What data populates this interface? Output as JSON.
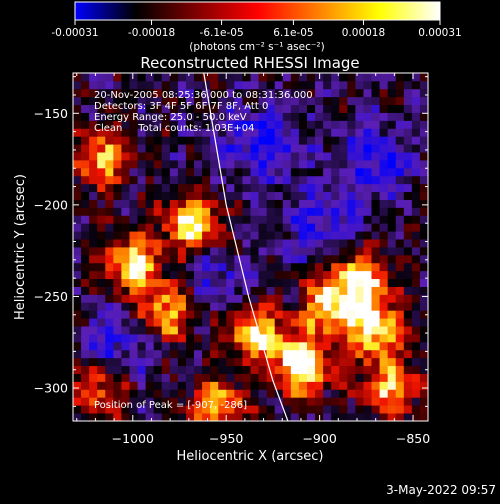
{
  "chart_data": {
    "type": "heatmap",
    "title": "Reconstructed RHESSI Image",
    "xlabel": "Heliocentric X (arcsec)",
    "ylabel": "Heliocentric Y (arcsec)",
    "xlim": [
      -1032,
      -842
    ],
    "ylim": [
      -318,
      -128
    ],
    "xticks": [
      -1000,
      -950,
      -900,
      -850
    ],
    "yticks": [
      -150,
      -200,
      -250,
      -300
    ],
    "colorbar": {
      "min": -0.00031,
      "max": 0.00031,
      "ticks": [
        {
          "value": -0.00031,
          "label": "-0.00031"
        },
        {
          "value": -0.00018,
          "label": "-0.00018"
        },
        {
          "value": -6.1e-05,
          "label": "-6.1e-05"
        },
        {
          "value": 6.1e-05,
          "label": "6.1e-05"
        },
        {
          "value": 0.00018,
          "label": "0.00018"
        },
        {
          "value": 0.00031,
          "label": "0.00031"
        }
      ],
      "unit_label": "(photons cm⁻² s⁻¹ asec⁻²)",
      "colors": [
        "#0000ff",
        "#000000",
        "#800000",
        "#ff0000",
        "#ff8000",
        "#ffff00",
        "#ffffff"
      ]
    },
    "annotations": [
      "20-Nov-2005 08:25:36.000 to 08:31:36.000",
      "Detectors: 3F 4F 5F 6F 7F 8F, Att 0",
      "Energy Range: 25.0 - 50.0 keV",
      "Clean     Total counts: 1.03E+04"
    ],
    "peak_label": "Position of Peak = [-907, -286]",
    "limb_curve": [
      [
        -962,
        -128
      ],
      [
        -950,
        -200
      ],
      [
        -938,
        -250
      ],
      [
        -925,
        -296
      ],
      [
        -917,
        -318
      ]
    ],
    "bright_regions": [
      {
        "x": -1000,
        "y": -232,
        "intensity": 0.85
      },
      {
        "x": -968,
        "y": -210,
        "intensity": 0.9
      },
      {
        "x": -1018,
        "y": -175,
        "intensity": 0.7
      },
      {
        "x": -982,
        "y": -258,
        "intensity": 0.75
      },
      {
        "x": -935,
        "y": -270,
        "intensity": 0.8
      },
      {
        "x": -910,
        "y": -288,
        "intensity": 0.95
      },
      {
        "x": -895,
        "y": -255,
        "intensity": 0.8
      },
      {
        "x": -878,
        "y": -240,
        "intensity": 0.75
      },
      {
        "x": -870,
        "y": -268,
        "intensity": 0.9
      },
      {
        "x": -862,
        "y": -300,
        "intensity": 0.7
      },
      {
        "x": -955,
        "y": -310,
        "intensity": 0.7
      },
      {
        "x": -1020,
        "y": -300,
        "intensity": 0.6
      }
    ],
    "dark_regions": [
      {
        "x": -930,
        "y": -165,
        "intensity": 0.8
      },
      {
        "x": -870,
        "y": -175,
        "intensity": 0.7
      },
      {
        "x": -900,
        "y": -210,
        "intensity": 0.6
      },
      {
        "x": -1010,
        "y": -275,
        "intensity": 0.6
      },
      {
        "x": -955,
        "y": -240,
        "intensity": 0.5
      }
    ]
  },
  "footer": {
    "date": "3-May-2022 09:57"
  }
}
